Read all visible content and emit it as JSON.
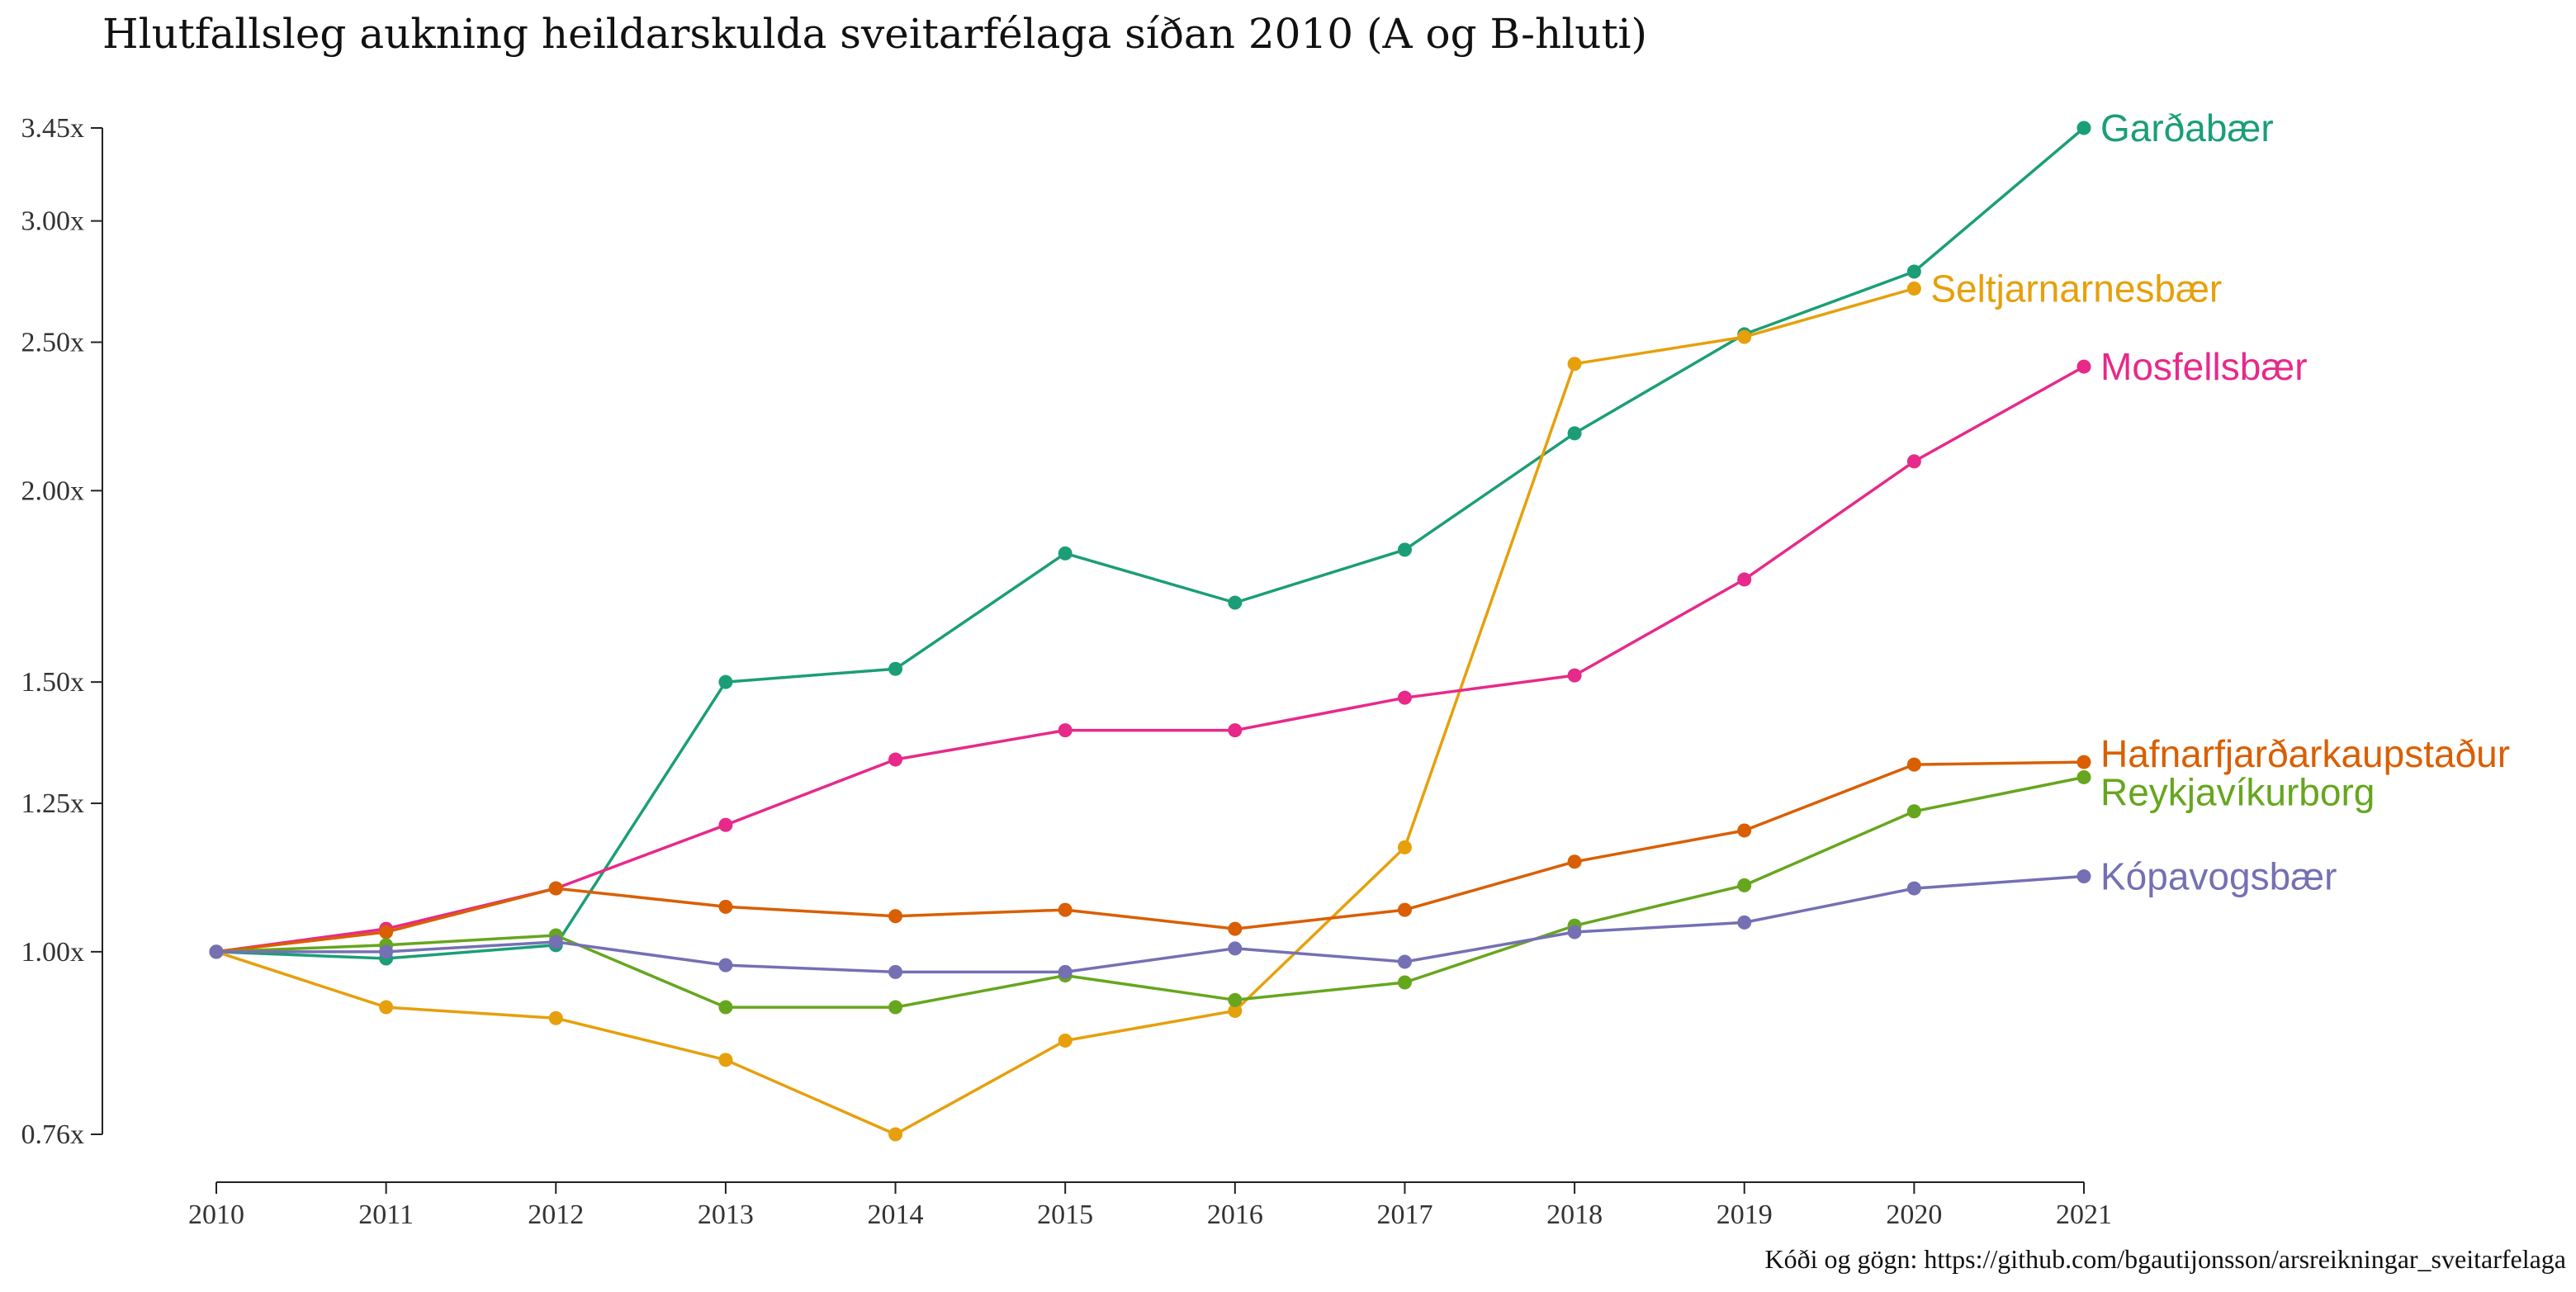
{
  "chart_data": {
    "type": "line",
    "title": "Hlutfallsleg aukning heildarskulda sveitarfélaga síðan 2010 (A og B-hluti)",
    "caption": "Kóði og gögn: https://github.com/bgautijonsson/arsreikningar_sveitarfelaga",
    "xlabel": "",
    "ylabel": "",
    "y_scale": "log",
    "ylim": [
      0.76,
      3.45
    ],
    "y_ticks": [
      0.76,
      1.0,
      1.25,
      1.5,
      2.0,
      2.5,
      3.0,
      3.45
    ],
    "y_tick_labels": [
      "0.76x",
      "1.00x",
      "1.25x",
      "1.50x",
      "2.00x",
      "2.50x",
      "3.00x",
      "3.45x"
    ],
    "x": [
      "2010",
      "2011",
      "2012",
      "2013",
      "2014",
      "2015",
      "2016",
      "2017",
      "2018",
      "2019",
      "2020",
      "2021"
    ],
    "series": [
      {
        "name": "Garðabær",
        "color": "#1b9e77",
        "label_offset": 0,
        "values": [
          1.0,
          0.99,
          1.01,
          1.5,
          1.53,
          1.82,
          1.69,
          1.83,
          2.18,
          2.53,
          2.78,
          3.45
        ]
      },
      {
        "name": "Seltjarnarnesbær",
        "color": "#e6a00c",
        "label_offset": 0,
        "values": [
          1.0,
          0.92,
          0.905,
          0.85,
          0.76,
          0.875,
          0.915,
          1.17,
          2.42,
          2.52,
          2.71,
          null
        ]
      },
      {
        "name": "Mosfellsbær",
        "color": "#e7298a",
        "label_offset": 0,
        "values": [
          1.0,
          1.035,
          1.1,
          1.21,
          1.335,
          1.395,
          1.395,
          1.465,
          1.515,
          1.75,
          2.09,
          2.41
        ]
      },
      {
        "name": "Hafnarfjarðarkaupstaður",
        "color": "#d95f02",
        "label_offset": -10,
        "values": [
          1.0,
          1.03,
          1.1,
          1.07,
          1.055,
          1.065,
          1.035,
          1.065,
          1.145,
          1.2,
          1.325,
          1.33
        ]
      },
      {
        "name": "Reykjavíkurborg",
        "color": "#66a61e",
        "label_offset": 18,
        "values": [
          1.0,
          1.01,
          1.025,
          0.92,
          0.92,
          0.965,
          0.93,
          0.955,
          1.04,
          1.105,
          1.235,
          1.3
        ]
      },
      {
        "name": "Kópavogsbær",
        "color": "#7570b3",
        "label_offset": 0,
        "values": [
          1.0,
          1.0,
          1.015,
          0.98,
          0.97,
          0.97,
          1.005,
          0.985,
          1.03,
          1.045,
          1.1,
          1.12
        ]
      }
    ]
  }
}
